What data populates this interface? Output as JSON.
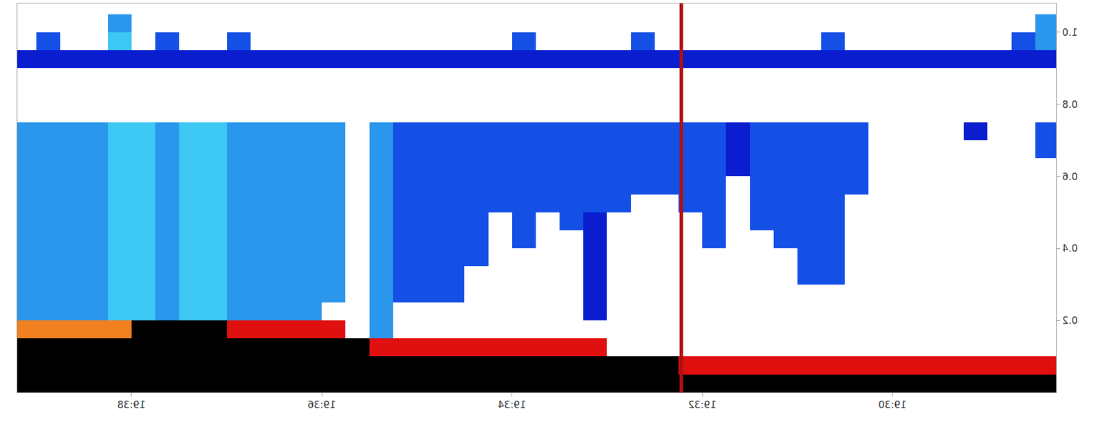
{
  "chart_data": {
    "type": "heatmap",
    "grid": false,
    "x": [
      1168.25,
      1168.5,
      1168.75,
      1169,
      1169.25,
      1169.5,
      1169.75,
      1170,
      1170.25,
      1170.5,
      1170.75,
      1171,
      1171.25,
      1171.5,
      1171.75,
      1172,
      1172.25,
      1172.5,
      1172.75,
      1173,
      1173.25,
      1173.5,
      1173.75,
      1174,
      1174.25,
      1174.5,
      1174.75,
      1175,
      1175.25,
      1175.5,
      1175.75,
      1176,
      1176.25,
      1176.5,
      1176.75,
      1177,
      1177.25,
      1177.5,
      1177.75,
      1178,
      1178.25,
      1178.5,
      1178.75,
      1179,
      1179.25
    ],
    "y": [
      0,
      0.05,
      0.1,
      0.15,
      0.2,
      0.25,
      0.3,
      0.35,
      0.4,
      0.45,
      0.5,
      0.55,
      0.6,
      0.65,
      0.7,
      0.75,
      0.8,
      0.85,
      0.9,
      0.95,
      1,
      1.05
    ],
    "z": [
      [
        10,
        10,
        10,
        10,
        10,
        10,
        10,
        10,
        10,
        10,
        10,
        10,
        10,
        10,
        10,
        10,
        10,
        10,
        10,
        10,
        10,
        10,
        10,
        10,
        10,
        10,
        10,
        10,
        10,
        10,
        10,
        10,
        10,
        10,
        10,
        10,
        10,
        10,
        10,
        10,
        10,
        10,
        10,
        10
      ],
      [
        8,
        8,
        8,
        8,
        8,
        8,
        8,
        8,
        8,
        8,
        8,
        8,
        8,
        8,
        8,
        8,
        10,
        10,
        10,
        10,
        10,
        10,
        10,
        10,
        10,
        10,
        10,
        10,
        10,
        10,
        10,
        10,
        10,
        10,
        10,
        10,
        10,
        10,
        10,
        10,
        10,
        10,
        10,
        10
      ],
      [
        null,
        null,
        null,
        null,
        null,
        null,
        null,
        null,
        null,
        null,
        null,
        null,
        null,
        null,
        null,
        null,
        null,
        null,
        null,
        8,
        8,
        8,
        8,
        8,
        8,
        8,
        8,
        8,
        8,
        10,
        10,
        10,
        10,
        10,
        10,
        10,
        10,
        10,
        10,
        10,
        10,
        10,
        10,
        10
      ],
      [
        null,
        null,
        null,
        null,
        null,
        null,
        null,
        null,
        null,
        null,
        null,
        null,
        null,
        null,
        null,
        null,
        null,
        null,
        null,
        null,
        null,
        null,
        null,
        null,
        null,
        null,
        null,
        null,
        3,
        null,
        8,
        8,
        8,
        8,
        8,
        10,
        10,
        10,
        10,
        7,
        7,
        7,
        7,
        7
      ],
      [
        null,
        null,
        null,
        null,
        null,
        null,
        null,
        null,
        null,
        null,
        null,
        null,
        null,
        null,
        null,
        null,
        null,
        null,
        null,
        1,
        null,
        null,
        null,
        null,
        null,
        null,
        null,
        null,
        3,
        null,
        null,
        3,
        3,
        3,
        3,
        4,
        4,
        3,
        4,
        4,
        3,
        3,
        3,
        3
      ],
      [
        null,
        null,
        null,
        null,
        null,
        null,
        null,
        null,
        null,
        null,
        null,
        null,
        null,
        null,
        null,
        null,
        null,
        null,
        null,
        1,
        null,
        null,
        null,
        null,
        null,
        2,
        2,
        2,
        3,
        null,
        3,
        3,
        3,
        3,
        3,
        4,
        4,
        3,
        4,
        4,
        3,
        3,
        3,
        3
      ],
      [
        null,
        null,
        null,
        null,
        null,
        null,
        null,
        null,
        null,
        2,
        2,
        null,
        null,
        null,
        null,
        null,
        null,
        null,
        null,
        1,
        null,
        null,
        null,
        null,
        null,
        2,
        2,
        2,
        3,
        null,
        3,
        3,
        3,
        3,
        3,
        4,
        4,
        3,
        4,
        4,
        3,
        3,
        3,
        3
      ],
      [
        null,
        null,
        null,
        null,
        null,
        null,
        null,
        null,
        null,
        2,
        2,
        null,
        null,
        null,
        null,
        null,
        null,
        null,
        null,
        1,
        null,
        null,
        null,
        null,
        2,
        2,
        2,
        2,
        3,
        null,
        3,
        3,
        3,
        3,
        3,
        4,
        4,
        3,
        4,
        4,
        3,
        3,
        3,
        3
      ],
      [
        null,
        null,
        null,
        null,
        null,
        null,
        null,
        null,
        null,
        2,
        2,
        2,
        null,
        null,
        2,
        null,
        null,
        null,
        null,
        1,
        null,
        null,
        2,
        null,
        2,
        2,
        2,
        2,
        3,
        null,
        3,
        3,
        3,
        3,
        3,
        4,
        4,
        3,
        4,
        4,
        3,
        3,
        3,
        3
      ],
      [
        null,
        null,
        null,
        null,
        null,
        null,
        null,
        null,
        null,
        2,
        2,
        2,
        2,
        null,
        2,
        null,
        null,
        null,
        null,
        1,
        2,
        null,
        2,
        null,
        2,
        2,
        2,
        2,
        3,
        null,
        3,
        3,
        3,
        3,
        3,
        4,
        4,
        3,
        4,
        4,
        3,
        3,
        3,
        3
      ],
      [
        null,
        null,
        null,
        null,
        null,
        null,
        null,
        null,
        null,
        2,
        2,
        2,
        2,
        null,
        2,
        2,
        null,
        null,
        2,
        2,
        2,
        2,
        2,
        2,
        2,
        2,
        2,
        2,
        3,
        null,
        3,
        3,
        3,
        3,
        3,
        4,
        4,
        3,
        4,
        4,
        3,
        3,
        3,
        3
      ],
      [
        null,
        null,
        null,
        null,
        null,
        null,
        null,
        null,
        2,
        2,
        2,
        2,
        2,
        null,
        2,
        2,
        2,
        2,
        2,
        2,
        2,
        2,
        2,
        2,
        2,
        2,
        2,
        2,
        3,
        null,
        3,
        3,
        3,
        3,
        3,
        4,
        4,
        3,
        4,
        4,
        3,
        3,
        3,
        3
      ],
      [
        null,
        null,
        null,
        null,
        null,
        null,
        null,
        null,
        2,
        2,
        2,
        2,
        2,
        1,
        2,
        2,
        2,
        2,
        2,
        2,
        2,
        2,
        2,
        2,
        2,
        2,
        2,
        2,
        3,
        null,
        3,
        3,
        3,
        3,
        3,
        4,
        4,
        3,
        4,
        4,
        3,
        3,
        3,
        3
      ],
      [
        2,
        null,
        null,
        null,
        null,
        null,
        null,
        null,
        2,
        2,
        2,
        2,
        2,
        1,
        2,
        2,
        2,
        2,
        2,
        2,
        2,
        2,
        2,
        2,
        2,
        2,
        2,
        2,
        3,
        null,
        3,
        3,
        3,
        3,
        3,
        4,
        4,
        3,
        4,
        4,
        3,
        3,
        3,
        3
      ],
      [
        2,
        null,
        null,
        1,
        null,
        null,
        null,
        null,
        2,
        2,
        2,
        2,
        2,
        1,
        2,
        2,
        2,
        2,
        2,
        2,
        2,
        2,
        2,
        2,
        2,
        2,
        2,
        2,
        3,
        null,
        3,
        3,
        3,
        3,
        3,
        4,
        4,
        3,
        4,
        4,
        3,
        3,
        3,
        3
      ],
      [
        null,
        null,
        null,
        null,
        null,
        null,
        null,
        null,
        null,
        null,
        null,
        null,
        null,
        null,
        null,
        null,
        null,
        null,
        null,
        null,
        null,
        null,
        null,
        null,
        null,
        null,
        null,
        null,
        null,
        null,
        null,
        null,
        null,
        null,
        null,
        null,
        null,
        null,
        null,
        null,
        null,
        null,
        null,
        null
      ],
      [
        null,
        null,
        null,
        null,
        null,
        null,
        null,
        null,
        null,
        null,
        null,
        null,
        null,
        null,
        null,
        null,
        null,
        null,
        null,
        null,
        null,
        null,
        null,
        null,
        null,
        null,
        null,
        null,
        null,
        null,
        null,
        null,
        null,
        null,
        null,
        null,
        null,
        null,
        null,
        null,
        null,
        null,
        null,
        null
      ],
      [
        null,
        null,
        null,
        null,
        null,
        null,
        null,
        null,
        null,
        null,
        null,
        null,
        null,
        null,
        null,
        null,
        null,
        null,
        null,
        null,
        null,
        null,
        null,
        null,
        null,
        null,
        null,
        null,
        null,
        null,
        null,
        null,
        null,
        null,
        null,
        null,
        null,
        null,
        null,
        null,
        null,
        null,
        null,
        null
      ],
      [
        1,
        1,
        1,
        1,
        1,
        1,
        1,
        1,
        1,
        1,
        1,
        1,
        1,
        1,
        1,
        1,
        1,
        1,
        1,
        1,
        1,
        1,
        1,
        1,
        1,
        1,
        1,
        1,
        1,
        1,
        1,
        1,
        1,
        1,
        1,
        1,
        1,
        1,
        1,
        1,
        1,
        1,
        1,
        1
      ],
      [
        3,
        2,
        null,
        null,
        null,
        null,
        null,
        null,
        null,
        2,
        null,
        null,
        null,
        null,
        null,
        null,
        null,
        2,
        null,
        null,
        null,
        null,
        2,
        null,
        null,
        null,
        null,
        null,
        null,
        null,
        null,
        null,
        null,
        null,
        2,
        null,
        null,
        2,
        null,
        4,
        null,
        null,
        2,
        null
      ],
      [
        3,
        null,
        null,
        null,
        null,
        null,
        null,
        null,
        null,
        null,
        null,
        null,
        null,
        null,
        null,
        null,
        null,
        null,
        null,
        null,
        null,
        null,
        null,
        null,
        null,
        null,
        null,
        null,
        null,
        null,
        null,
        null,
        null,
        null,
        null,
        null,
        null,
        null,
        null,
        3,
        null,
        null,
        null,
        null
      ]
    ],
    "zlim": [
      0,
      10
    ],
    "colors": [
      "#000090",
      "#0a1ed0",
      "#1450e6",
      "#2a96ec",
      "#3cc8f2",
      "#7ae0c0",
      "#f0e030",
      "#f08020",
      "#e01010",
      "#700000",
      "#000000"
    ],
    "xlim": [
      1168.28,
      1179.2
    ],
    "xticks": [
      {
        "value": 1170,
        "label": "19:30"
      },
      {
        "value": 1172,
        "label": "19:32"
      },
      {
        "value": 1174,
        "label": "19:34"
      },
      {
        "value": 1176,
        "label": "19:36"
      },
      {
        "value": 1178,
        "label": "19:38"
      }
    ],
    "ylim": [
      0,
      1.08
    ],
    "yticks": [
      0.2,
      0.4,
      0.6,
      0.8,
      {
        "value": 1,
        "label": "1.0"
      }
    ],
    "vertical_line": {
      "x": 1172.22,
      "color": "#b01010"
    }
  }
}
